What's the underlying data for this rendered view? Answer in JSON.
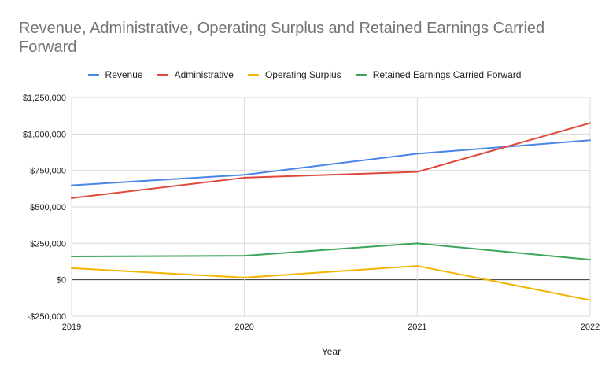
{
  "chart_data": {
    "type": "line",
    "title": "Revenue, Administrative, Operating Surplus and Retained Earnings Carried Forward",
    "xlabel": "Year",
    "ylabel": "",
    "x": [
      "2019",
      "2020",
      "2021",
      "2022"
    ],
    "ylim": [
      -250000,
      1250000
    ],
    "y_ticks": [
      -250000,
      0,
      250000,
      500000,
      750000,
      1000000,
      1250000
    ],
    "y_tick_labels": [
      "-$250,000",
      "$0",
      "$250,000",
      "$500,000",
      "$750,000",
      "$1,000,000",
      "$1,250,000"
    ],
    "grid": true,
    "legend_position": "top",
    "series": [
      {
        "name": "Revenue",
        "color": "#4a86e8",
        "values": [
          648000,
          720000,
          865000,
          957000
        ]
      },
      {
        "name": "Administrative",
        "color": "#e04a3c",
        "values": [
          560000,
          700000,
          740000,
          1075000
        ]
      },
      {
        "name": "Operating Surplus",
        "color": "#f4b400",
        "values": [
          80000,
          15000,
          95000,
          -140000
        ]
      },
      {
        "name": "Retained Earnings Carried Forward",
        "color": "#3da55a",
        "values": [
          160000,
          165000,
          250000,
          138000
        ]
      }
    ]
  }
}
